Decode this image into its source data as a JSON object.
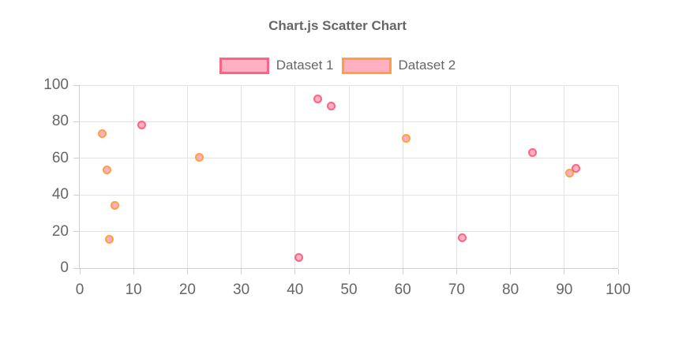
{
  "chart_data": {
    "type": "scatter",
    "title": "Chart.js Scatter Chart",
    "xlabel": "",
    "ylabel": "",
    "xlim": [
      0,
      100
    ],
    "ylim": [
      0,
      100
    ],
    "x_ticks": [
      0,
      10,
      20,
      30,
      40,
      50,
      60,
      70,
      80,
      90,
      100
    ],
    "y_ticks": [
      0,
      20,
      40,
      60,
      80,
      100
    ],
    "grid": true,
    "legend_position": "top",
    "series": [
      {
        "name": "Dataset 1",
        "border_color": "#ff6384",
        "fill_color": "#ffb1c1",
        "points": [
          [
            11.6,
            78.1
          ],
          [
            40.7,
            5.8
          ],
          [
            44.3,
            92.2
          ],
          [
            46.8,
            88.5
          ],
          [
            71.1,
            16.3
          ],
          [
            84.2,
            63.0
          ],
          [
            92.3,
            54.4
          ]
        ]
      },
      {
        "name": "Dataset 2",
        "border_color": "#ff9f40",
        "fill_color": "#ffb1c1",
        "points": [
          [
            4.2,
            73.3
          ],
          [
            5.1,
            53.4
          ],
          [
            6.6,
            34.2
          ],
          [
            5.6,
            15.6
          ],
          [
            22.3,
            60.5
          ],
          [
            60.7,
            70.6
          ],
          [
            91.0,
            51.7
          ]
        ]
      }
    ]
  },
  "colors": {
    "text": "#666666",
    "grid": "#e3e3e3",
    "axis_border": "#cfcfcf",
    "background": "#ffffff"
  }
}
